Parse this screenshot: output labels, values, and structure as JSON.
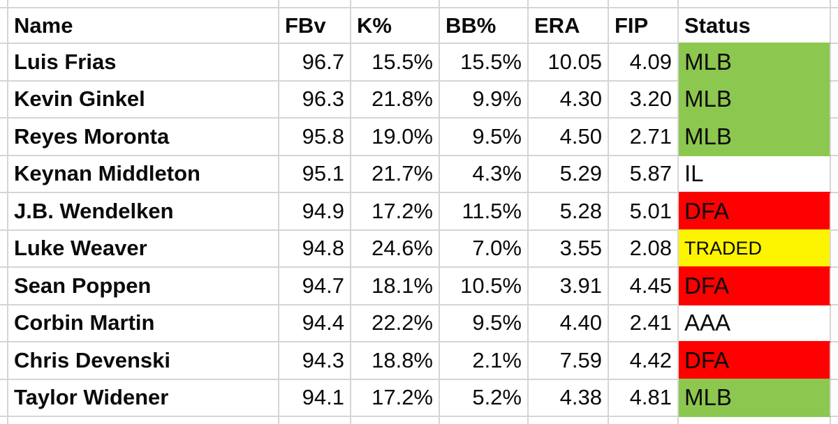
{
  "app": {
    "type": "spreadsheet-table",
    "grid_color": "#d5d5d5",
    "text_color": "#0a0a0a"
  },
  "columns": [
    {
      "id": "name",
      "label": "Name"
    },
    {
      "id": "fbv",
      "label": "FBv"
    },
    {
      "id": "k_pct",
      "label": "K%"
    },
    {
      "id": "bb_pct",
      "label": "BB%"
    },
    {
      "id": "era",
      "label": "ERA"
    },
    {
      "id": "fip",
      "label": "FIP"
    },
    {
      "id": "status",
      "label": "Status"
    }
  ],
  "status_colors": {
    "MLB": "#8cc74f",
    "IL": "#ffffff",
    "DFA": "#fe0000",
    "TRADED": "#fdf400",
    "AAA": "#ffffff"
  },
  "rows": [
    {
      "name": "Luis Frias",
      "fbv": "96.7",
      "k_pct": "15.5%",
      "bb_pct": "15.5%",
      "era": "10.05",
      "fip": "4.09",
      "status": "MLB"
    },
    {
      "name": "Kevin Ginkel",
      "fbv": "96.3",
      "k_pct": "21.8%",
      "bb_pct": "9.9%",
      "era": "4.30",
      "fip": "3.20",
      "status": "MLB"
    },
    {
      "name": "Reyes Moronta",
      "fbv": "95.8",
      "k_pct": "19.0%",
      "bb_pct": "9.5%",
      "era": "4.50",
      "fip": "2.71",
      "status": "MLB"
    },
    {
      "name": "Keynan Middleton",
      "fbv": "95.1",
      "k_pct": "21.7%",
      "bb_pct": "4.3%",
      "era": "5.29",
      "fip": "5.87",
      "status": "IL"
    },
    {
      "name": "J.B. Wendelken",
      "fbv": "94.9",
      "k_pct": "17.2%",
      "bb_pct": "11.5%",
      "era": "5.28",
      "fip": "5.01",
      "status": "DFA"
    },
    {
      "name": "Luke Weaver",
      "fbv": "94.8",
      "k_pct": "24.6%",
      "bb_pct": "7.0%",
      "era": "3.55",
      "fip": "2.08",
      "status": "TRADED"
    },
    {
      "name": "Sean Poppen",
      "fbv": "94.7",
      "k_pct": "18.1%",
      "bb_pct": "10.5%",
      "era": "3.91",
      "fip": "4.45",
      "status": "DFA"
    },
    {
      "name": "Corbin Martin",
      "fbv": "94.4",
      "k_pct": "22.2%",
      "bb_pct": "9.5%",
      "era": "4.40",
      "fip": "2.41",
      "status": "AAA"
    },
    {
      "name": "Chris Devenski",
      "fbv": "94.3",
      "k_pct": "18.8%",
      "bb_pct": "2.1%",
      "era": "7.59",
      "fip": "4.42",
      "status": "DFA"
    },
    {
      "name": "Taylor Widener",
      "fbv": "94.1",
      "k_pct": "17.2%",
      "bb_pct": "5.2%",
      "era": "4.38",
      "fip": "4.81",
      "status": "MLB"
    }
  ]
}
